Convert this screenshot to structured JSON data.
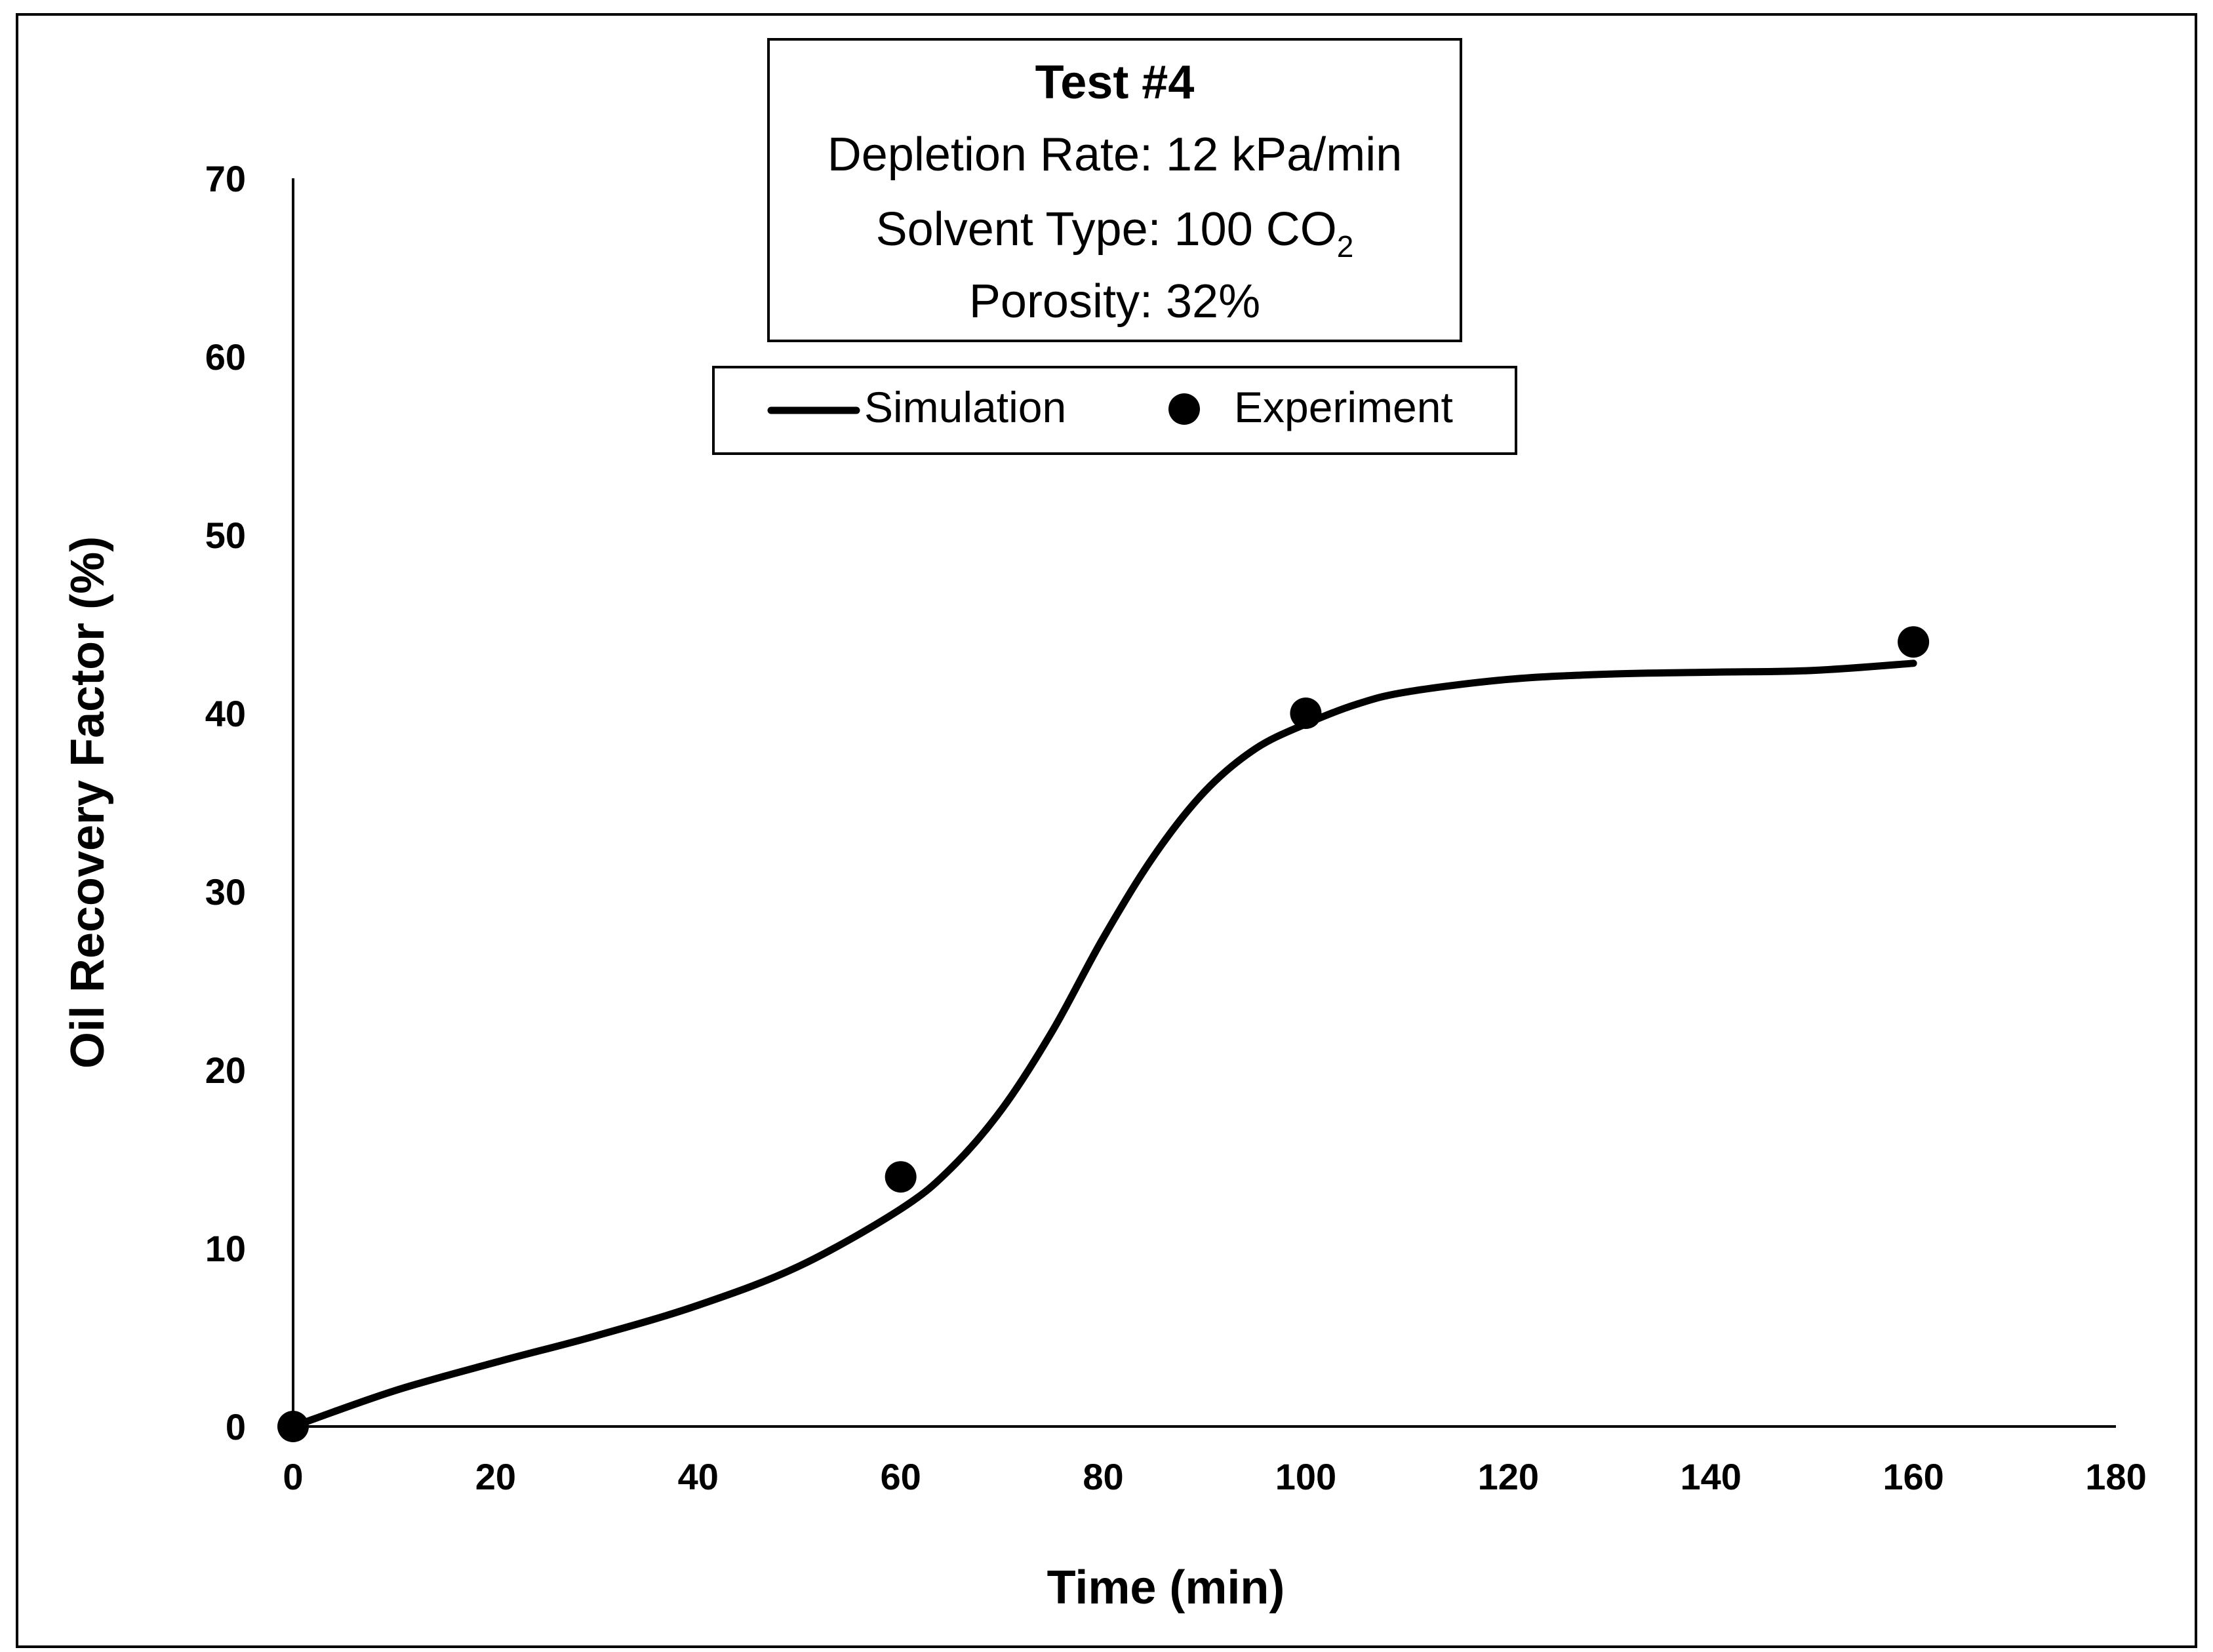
{
  "chart_data": {
    "type": "line",
    "title": "Test #4",
    "info_lines": {
      "depletion_rate": "Depletion Rate: 12 kPa/min",
      "solvent_prefix": "Solvent Type: 100 CO",
      "solvent_subscript": "2",
      "porosity": "Porosity: 32%"
    },
    "xlabel": "Time (min)",
    "ylabel": "Oil Recovery Factor (%)",
    "xlim": [
      0,
      180
    ],
    "ylim": [
      0,
      70
    ],
    "x_ticks": [
      0,
      20,
      40,
      60,
      80,
      100,
      120,
      140,
      160,
      180
    ],
    "y_ticks": [
      0,
      10,
      20,
      30,
      40,
      50,
      60,
      70
    ],
    "grid": false,
    "legend_position": "top-center",
    "legend": [
      "Simulation",
      "Experiment"
    ],
    "series": [
      {
        "name": "Simulation",
        "style": "line",
        "x": [
          0,
          10,
          20,
          30,
          40,
          50,
          60,
          65,
          70,
          75,
          80,
          85,
          90,
          95,
          100,
          105,
          110,
          120,
          130,
          140,
          150,
          160
        ],
        "y": [
          0,
          2.0,
          3.6,
          5.1,
          6.8,
          9.0,
          12.2,
          14.5,
          17.8,
          22.2,
          27.4,
          32.0,
          35.6,
          38.0,
          39.4,
          40.5,
          41.2,
          41.9,
          42.2,
          42.3,
          42.4,
          42.8
        ]
      },
      {
        "name": "Experiment",
        "style": "markers",
        "x": [
          0,
          60,
          100,
          160
        ],
        "y": [
          0,
          14,
          40,
          44
        ]
      }
    ]
  }
}
